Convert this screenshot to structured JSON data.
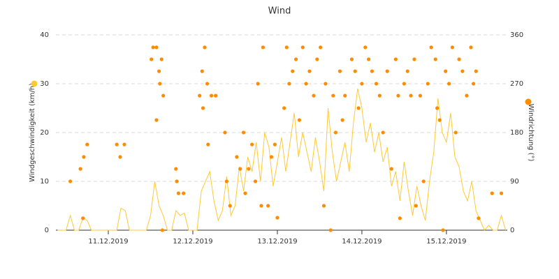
{
  "chart_data": {
    "type": "line",
    "title": "Wind",
    "xlim": [
      10.38,
      15.72
    ],
    "xticks": [
      {
        "value": 11,
        "label": "11.12.2019"
      },
      {
        "value": 12,
        "label": "12.12.2019"
      },
      {
        "value": 13,
        "label": "13.12.2019"
      },
      {
        "value": 14,
        "label": "14.12.2019"
      },
      {
        "value": 15,
        "label": "15.12.2019"
      }
    ],
    "ylim": [
      0,
      40
    ],
    "yticks": [
      0,
      10,
      20,
      30,
      40
    ],
    "y2lim": [
      0,
      360
    ],
    "y2ticks": [
      0,
      90,
      180,
      270,
      360
    ],
    "grid": true,
    "series": [
      {
        "name": "Windgeschwindigkeit (km/h)",
        "type": "line",
        "color": "#ffc933",
        "x": [
          10.4,
          10.45,
          10.5,
          10.55,
          10.6,
          10.65,
          10.7,
          10.75,
          10.8,
          10.85,
          10.9,
          10.95,
          11.0,
          11.05,
          11.1,
          11.15,
          11.2,
          11.25,
          11.3,
          11.35,
          11.4,
          11.45,
          11.5,
          11.55,
          11.6,
          11.65,
          11.7,
          11.75,
          11.8,
          11.85,
          11.9,
          11.95,
          12.0,
          12.05,
          12.1,
          12.15,
          12.2,
          12.25,
          12.3,
          12.35,
          12.4,
          12.45,
          12.5,
          12.55,
          12.6,
          12.65,
          12.7,
          12.75,
          12.8,
          12.85,
          12.9,
          12.95,
          13.0,
          13.05,
          13.1,
          13.15,
          13.2,
          13.25,
          13.3,
          13.35,
          13.4,
          13.45,
          13.5,
          13.55,
          13.6,
          13.65,
          13.7,
          13.75,
          13.8,
          13.85,
          13.9,
          13.95,
          14.0,
          14.05,
          14.1,
          14.15,
          14.2,
          14.25,
          14.3,
          14.35,
          14.4,
          14.45,
          14.5,
          14.55,
          14.6,
          14.65,
          14.7,
          14.75,
          14.8,
          14.85,
          14.9,
          14.95,
          15.0,
          15.05,
          15.1,
          15.15,
          15.2,
          15.25,
          15.3,
          15.35,
          15.4,
          15.45,
          15.5,
          15.55,
          15.6,
          15.65,
          15.7
        ],
        "values": [
          0,
          0,
          0,
          3,
          0,
          0,
          2.5,
          2,
          0,
          0,
          0,
          0,
          0,
          0,
          0,
          4.5,
          4,
          0,
          0,
          0,
          0,
          0,
          3,
          10,
          5,
          3,
          0,
          0,
          4,
          3,
          3.5,
          0,
          0,
          0,
          8,
          10,
          12,
          6,
          2,
          4,
          11,
          3,
          5,
          13,
          8,
          15,
          12,
          18,
          10,
          20,
          17,
          9,
          14,
          19,
          12,
          18,
          24,
          15,
          20,
          16,
          12,
          19,
          14,
          8,
          25,
          16,
          10,
          14,
          18,
          12,
          22,
          29,
          25,
          18,
          22,
          16,
          20,
          14,
          17,
          9,
          12,
          6,
          14,
          8,
          3,
          9,
          5,
          2,
          10,
          16,
          27,
          20,
          18,
          24,
          15,
          13,
          8,
          6,
          10,
          4,
          2,
          0,
          1,
          0,
          0,
          3,
          0
        ]
      },
      {
        "name": "Windrichtung (°)",
        "type": "scatter",
        "axis": "y2",
        "color": "#ff8c00",
        "x": [
          10.55,
          10.67,
          10.71,
          10.75,
          10.7,
          11.1,
          11.14,
          11.19,
          11.51,
          11.53,
          11.57,
          11.6,
          11.61,
          11.57,
          11.63,
          11.65,
          11.64,
          11.8,
          11.81,
          11.83,
          11.89,
          12.08,
          12.11,
          12.14,
          12.12,
          12.17,
          12.18,
          12.22,
          12.27,
          12.38,
          12.4,
          12.44,
          12.52,
          12.56,
          12.6,
          12.62,
          12.66,
          12.7,
          12.74,
          12.77,
          12.81,
          12.83,
          12.89,
          12.93,
          12.97,
          13.0,
          13.08,
          13.11,
          13.14,
          13.18,
          13.22,
          13.26,
          13.3,
          13.34,
          13.38,
          13.43,
          13.47,
          13.51,
          13.55,
          13.57,
          13.63,
          13.66,
          13.69,
          13.74,
          13.77,
          13.8,
          13.88,
          13.92,
          13.96,
          14.0,
          14.04,
          14.08,
          14.12,
          14.17,
          14.21,
          14.25,
          14.3,
          14.35,
          14.4,
          14.43,
          14.45,
          14.5,
          14.54,
          14.58,
          14.62,
          14.64,
          14.69,
          14.73,
          14.78,
          14.82,
          14.87,
          14.89,
          14.92,
          14.96,
          14.99,
          15.03,
          15.07,
          15.11,
          15.15,
          15.19,
          15.24,
          15.29,
          15.32,
          15.35,
          15.38,
          15.54,
          15.65
        ],
        "values": [
          90,
          113,
          135,
          158,
          22,
          158,
          135,
          158,
          315,
          337,
          337,
          293,
          270,
          203,
          315,
          248,
          0,
          113,
          90,
          68,
          68,
          248,
          293,
          337,
          225,
          270,
          158,
          248,
          248,
          180,
          90,
          45,
          135,
          113,
          180,
          68,
          113,
          158,
          90,
          270,
          45,
          337,
          45,
          135,
          158,
          23,
          225,
          337,
          270,
          293,
          315,
          203,
          337,
          270,
          293,
          248,
          315,
          337,
          45,
          270,
          0,
          248,
          180,
          293,
          203,
          248,
          315,
          293,
          225,
          270,
          337,
          315,
          293,
          270,
          248,
          180,
          293,
          113,
          315,
          248,
          22,
          270,
          293,
          248,
          315,
          45,
          248,
          90,
          270,
          337,
          315,
          225,
          203,
          0,
          293,
          270,
          337,
          180,
          315,
          293,
          248,
          337,
          270,
          293,
          22,
          68,
          68
        ]
      }
    ]
  }
}
